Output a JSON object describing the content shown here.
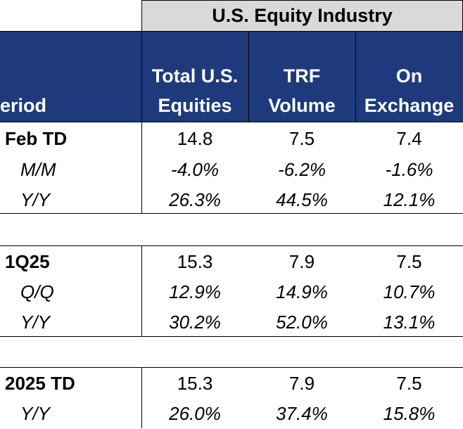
{
  "industry_header": "U.S. Equity Industry",
  "columns": {
    "period": "eriod",
    "total_line1": "Total U.S.",
    "total_line2": "Equities",
    "trf_line1": "TRF",
    "trf_line2": "Volume",
    "onex_line1": "On",
    "onex_line2": "Exchange"
  },
  "rows": [
    {
      "label": "Feb TD",
      "total": "14.8",
      "trf": "7.5",
      "onex": "7.4"
    },
    {
      "label": "M/M",
      "total": "-4.0%",
      "trf": "-6.2%",
      "onex": "-1.6%"
    },
    {
      "label": "Y/Y",
      "total": "26.3%",
      "trf": "44.5%",
      "onex": "12.1%"
    },
    {
      "label": "1Q25",
      "total": "15.3",
      "trf": "7.9",
      "onex": "7.5"
    },
    {
      "label": "Q/Q",
      "total": "12.9%",
      "trf": "14.9%",
      "onex": "10.7%"
    },
    {
      "label": "Y/Y",
      "total": "30.2%",
      "trf": "52.0%",
      "onex": "13.1%"
    },
    {
      "label": "2025 TD",
      "total": "15.3",
      "trf": "7.9",
      "onex": "7.5"
    },
    {
      "label": "Y/Y",
      "total": "26.0%",
      "trf": "37.4%",
      "onex": "15.8%"
    }
  ],
  "colors": {
    "header_bg": "#1f3a7c",
    "industry_bg": "#d9d9d9"
  }
}
